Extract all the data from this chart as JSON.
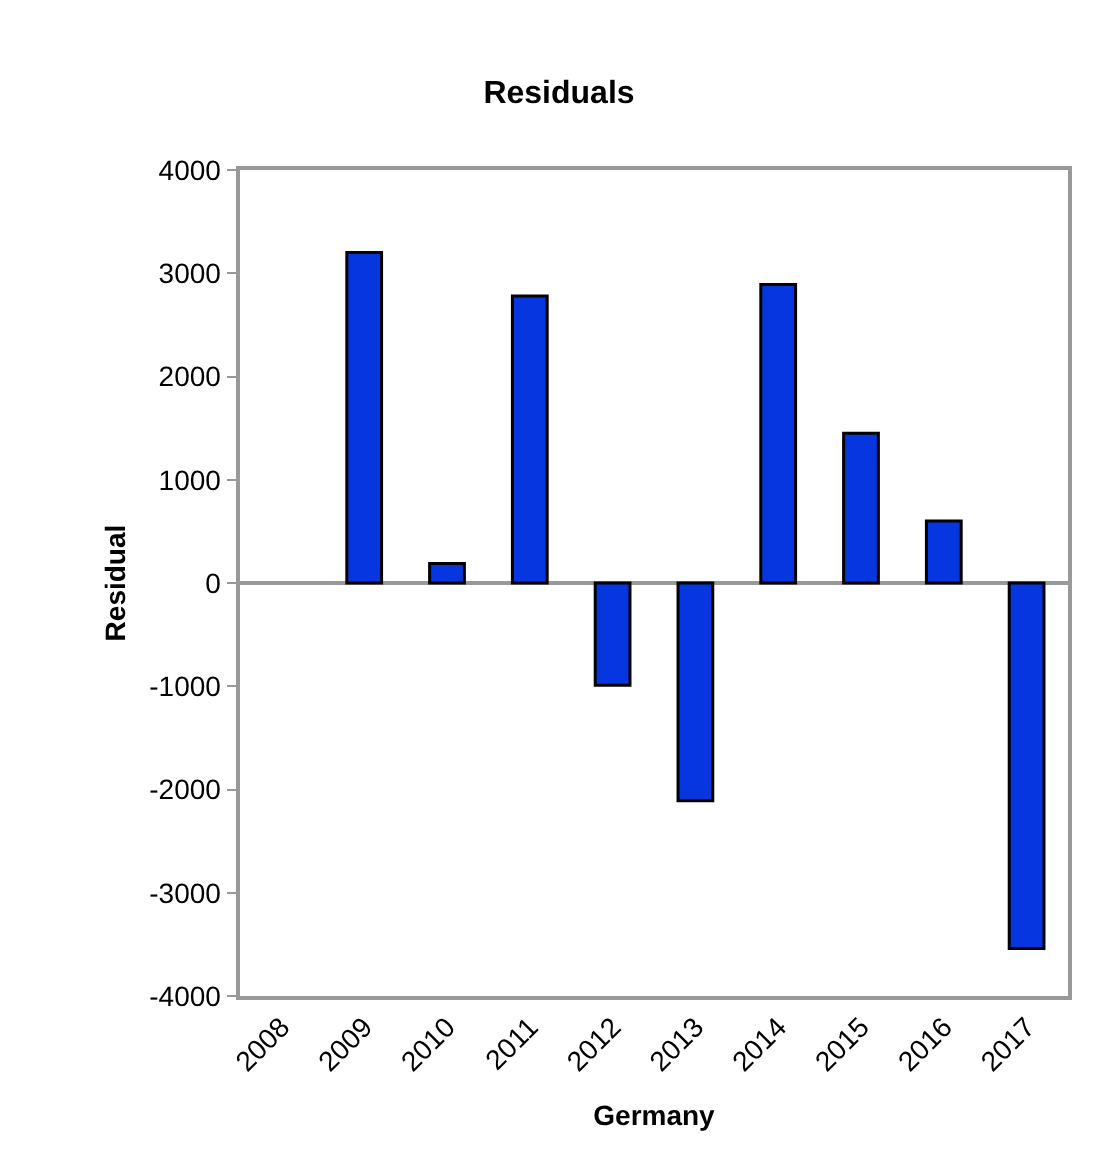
{
  "chart_data": {
    "type": "bar",
    "title": "Residuals",
    "xlabel": "Germany",
    "ylabel": "Residual",
    "categories": [
      "2008",
      "2009",
      "2010",
      "2011",
      "2012",
      "2013",
      "2014",
      "2015",
      "2016",
      "2017"
    ],
    "values": [
      null,
      3200,
      190,
      2780,
      -990,
      -2110,
      2890,
      1450,
      600,
      -3540
    ],
    "color": "#0536e0",
    "ylim": [
      -4000,
      4000
    ],
    "yticks": [
      -4000,
      -3000,
      -2000,
      -1000,
      0,
      1000,
      2000,
      3000,
      4000
    ],
    "legend": false
  }
}
